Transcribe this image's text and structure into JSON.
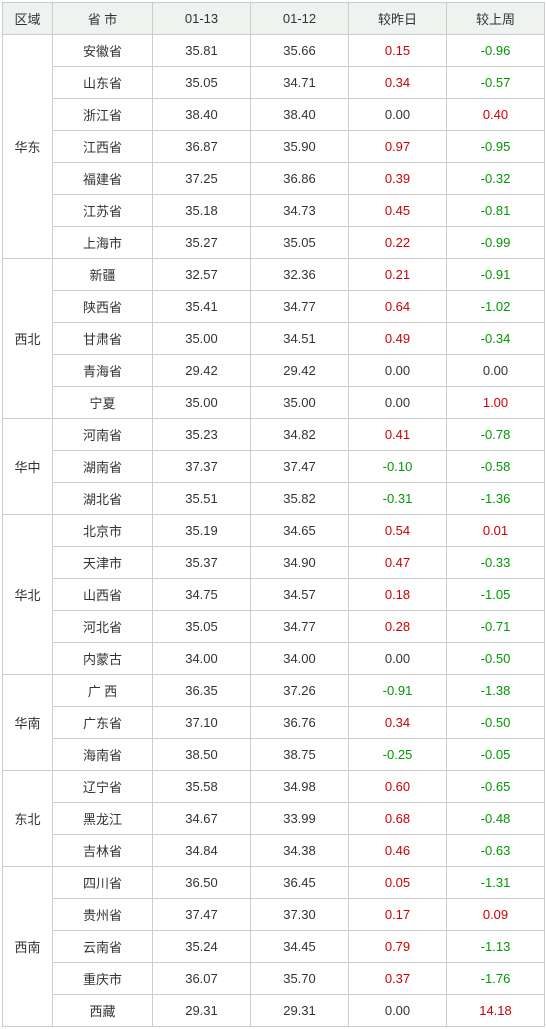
{
  "columns": [
    "区域",
    "省 市",
    "01-13",
    "01-12",
    "较昨日",
    "较上周"
  ],
  "region_groups": [
    {
      "name": "华东",
      "rows": [
        {
          "prov": "安徽省",
          "d13": "35.81",
          "d12": "35.66",
          "dod": "0.15",
          "wow": "-0.96"
        },
        {
          "prov": "山东省",
          "d13": "35.05",
          "d12": "34.71",
          "dod": "0.34",
          "wow": "-0.57"
        },
        {
          "prov": "浙江省",
          "d13": "38.40",
          "d12": "38.40",
          "dod": "0.00",
          "wow": "0.40"
        },
        {
          "prov": "江西省",
          "d13": "36.87",
          "d12": "35.90",
          "dod": "0.97",
          "wow": "-0.95"
        },
        {
          "prov": "福建省",
          "d13": "37.25",
          "d12": "36.86",
          "dod": "0.39",
          "wow": "-0.32"
        },
        {
          "prov": "江苏省",
          "d13": "35.18",
          "d12": "34.73",
          "dod": "0.45",
          "wow": "-0.81"
        },
        {
          "prov": "上海市",
          "d13": "35.27",
          "d12": "35.05",
          "dod": "0.22",
          "wow": "-0.99"
        }
      ]
    },
    {
      "name": "西北",
      "rows": [
        {
          "prov": "新疆",
          "d13": "32.57",
          "d12": "32.36",
          "dod": "0.21",
          "wow": "-0.91"
        },
        {
          "prov": "陕西省",
          "d13": "35.41",
          "d12": "34.77",
          "dod": "0.64",
          "wow": "-1.02"
        },
        {
          "prov": "甘肃省",
          "d13": "35.00",
          "d12": "34.51",
          "dod": "0.49",
          "wow": "-0.34"
        },
        {
          "prov": "青海省",
          "d13": "29.42",
          "d12": "29.42",
          "dod": "0.00",
          "wow": "0.00"
        },
        {
          "prov": "宁夏",
          "d13": "35.00",
          "d12": "35.00",
          "dod": "0.00",
          "wow": "1.00"
        }
      ]
    },
    {
      "name": "华中",
      "rows": [
        {
          "prov": "河南省",
          "d13": "35.23",
          "d12": "34.82",
          "dod": "0.41",
          "wow": "-0.78"
        },
        {
          "prov": "湖南省",
          "d13": "37.37",
          "d12": "37.47",
          "dod": "-0.10",
          "wow": "-0.58"
        },
        {
          "prov": "湖北省",
          "d13": "35.51",
          "d12": "35.82",
          "dod": "-0.31",
          "wow": "-1.36"
        }
      ]
    },
    {
      "name": "华北",
      "rows": [
        {
          "prov": "北京市",
          "d13": "35.19",
          "d12": "34.65",
          "dod": "0.54",
          "wow": "0.01"
        },
        {
          "prov": "天津市",
          "d13": "35.37",
          "d12": "34.90",
          "dod": "0.47",
          "wow": "-0.33"
        },
        {
          "prov": "山西省",
          "d13": "34.75",
          "d12": "34.57",
          "dod": "0.18",
          "wow": "-1.05"
        },
        {
          "prov": "河北省",
          "d13": "35.05",
          "d12": "34.77",
          "dod": "0.28",
          "wow": "-0.71"
        },
        {
          "prov": "内蒙古",
          "d13": "34.00",
          "d12": "34.00",
          "dod": "0.00",
          "wow": "-0.50"
        }
      ]
    },
    {
      "name": "华南",
      "rows": [
        {
          "prov": "广 西",
          "d13": "36.35",
          "d12": "37.26",
          "dod": "-0.91",
          "wow": "-1.38"
        },
        {
          "prov": "广东省",
          "d13": "37.10",
          "d12": "36.76",
          "dod": "0.34",
          "wow": "-0.50"
        },
        {
          "prov": "海南省",
          "d13": "38.50",
          "d12": "38.75",
          "dod": "-0.25",
          "wow": "-0.05"
        }
      ]
    },
    {
      "name": "东北",
      "rows": [
        {
          "prov": "辽宁省",
          "d13": "35.58",
          "d12": "34.98",
          "dod": "0.60",
          "wow": "-0.65"
        },
        {
          "prov": "黑龙江",
          "d13": "34.67",
          "d12": "33.99",
          "dod": "0.68",
          "wow": "-0.48"
        },
        {
          "prov": "吉林省",
          "d13": "34.84",
          "d12": "34.38",
          "dod": "0.46",
          "wow": "-0.63"
        }
      ]
    },
    {
      "name": "西南",
      "rows": [
        {
          "prov": "四川省",
          "d13": "36.50",
          "d12": "36.45",
          "dod": "0.05",
          "wow": "-1.31"
        },
        {
          "prov": "贵州省",
          "d13": "37.47",
          "d12": "37.30",
          "dod": "0.17",
          "wow": "0.09"
        },
        {
          "prov": "云南省",
          "d13": "35.24",
          "d12": "34.45",
          "dod": "0.79",
          "wow": "-1.13"
        },
        {
          "prov": "重庆市",
          "d13": "36.07",
          "d12": "35.70",
          "dod": "0.37",
          "wow": "-1.76"
        },
        {
          "prov": "西藏",
          "d13": "29.31",
          "d12": "29.31",
          "dod": "0.00",
          "wow": "14.18"
        }
      ]
    }
  ]
}
